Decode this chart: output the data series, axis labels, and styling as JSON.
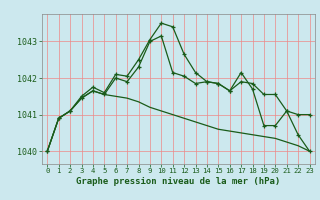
{
  "title": "Graphe pression niveau de la mer (hPa)",
  "background_color": "#cce8ee",
  "grid_color": "#ee8888",
  "line_color": "#1a5c1a",
  "xlim": [
    -0.5,
    23.5
  ],
  "ylim": [
    1039.65,
    1043.75
  ],
  "yticks": [
    1040,
    1041,
    1042,
    1043
  ],
  "xtick_labels": [
    "0",
    "1",
    "2",
    "3",
    "4",
    "5",
    "6",
    "7",
    "8",
    "9",
    "10",
    "11",
    "12",
    "13",
    "14",
    "15",
    "16",
    "17",
    "18",
    "19",
    "20",
    "21",
    "22",
    "23"
  ],
  "series1_y": [
    1040.0,
    1040.9,
    1041.1,
    1041.5,
    1041.75,
    1041.6,
    1042.1,
    1042.05,
    1042.5,
    1043.05,
    1043.5,
    1043.4,
    1042.65,
    1042.15,
    1041.9,
    1041.85,
    1041.65,
    1041.9,
    1041.85,
    1041.55,
    1041.55,
    1041.1,
    1041.0,
    1041.0
  ],
  "series2_y": [
    1040.0,
    1040.9,
    1041.1,
    1041.45,
    1041.65,
    1041.55,
    1041.5,
    1041.45,
    1041.35,
    1041.2,
    1041.1,
    1041.0,
    1040.9,
    1040.8,
    1040.7,
    1040.6,
    1040.55,
    1040.5,
    1040.45,
    1040.4,
    1040.35,
    1040.25,
    1040.15,
    1040.0
  ],
  "series3_y": [
    1040.0,
    1040.9,
    1041.1,
    1041.45,
    1041.65,
    1041.55,
    1042.0,
    1041.9,
    1042.3,
    1043.0,
    1043.15,
    1042.15,
    1042.05,
    1041.85,
    1041.9,
    1041.85,
    1041.65,
    1042.15,
    1041.7,
    1040.7,
    1040.7,
    1041.1,
    1040.45,
    1040.0
  ],
  "figsize": [
    3.2,
    2.0
  ],
  "dpi": 100
}
